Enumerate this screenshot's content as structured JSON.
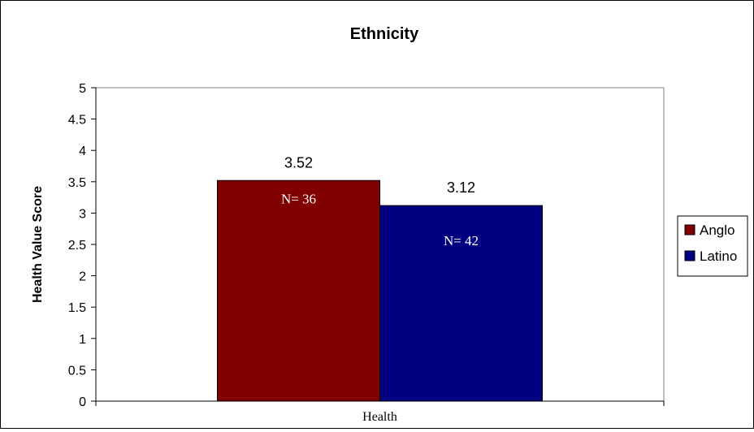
{
  "chart_data": {
    "type": "bar",
    "title": "Ethnicity",
    "xlabel": "",
    "ylabel": "Health Value Score",
    "categories": [
      "Health"
    ],
    "ylim": [
      0,
      5
    ],
    "yticks": [
      "0",
      "0.5",
      "1",
      "1.5",
      "2",
      "2.5",
      "3",
      "3.5",
      "4",
      "4.5",
      "5"
    ],
    "grid": false,
    "legend_position": "right",
    "series": [
      {
        "name": "Anglo",
        "values": [
          3.52
        ],
        "value_label": "3.52",
        "annotation": "N= 36",
        "color": "#800000"
      },
      {
        "name": "Latino",
        "values": [
          3.12
        ],
        "value_label": "3.12",
        "annotation": "N= 42",
        "color": "#000080"
      }
    ]
  }
}
